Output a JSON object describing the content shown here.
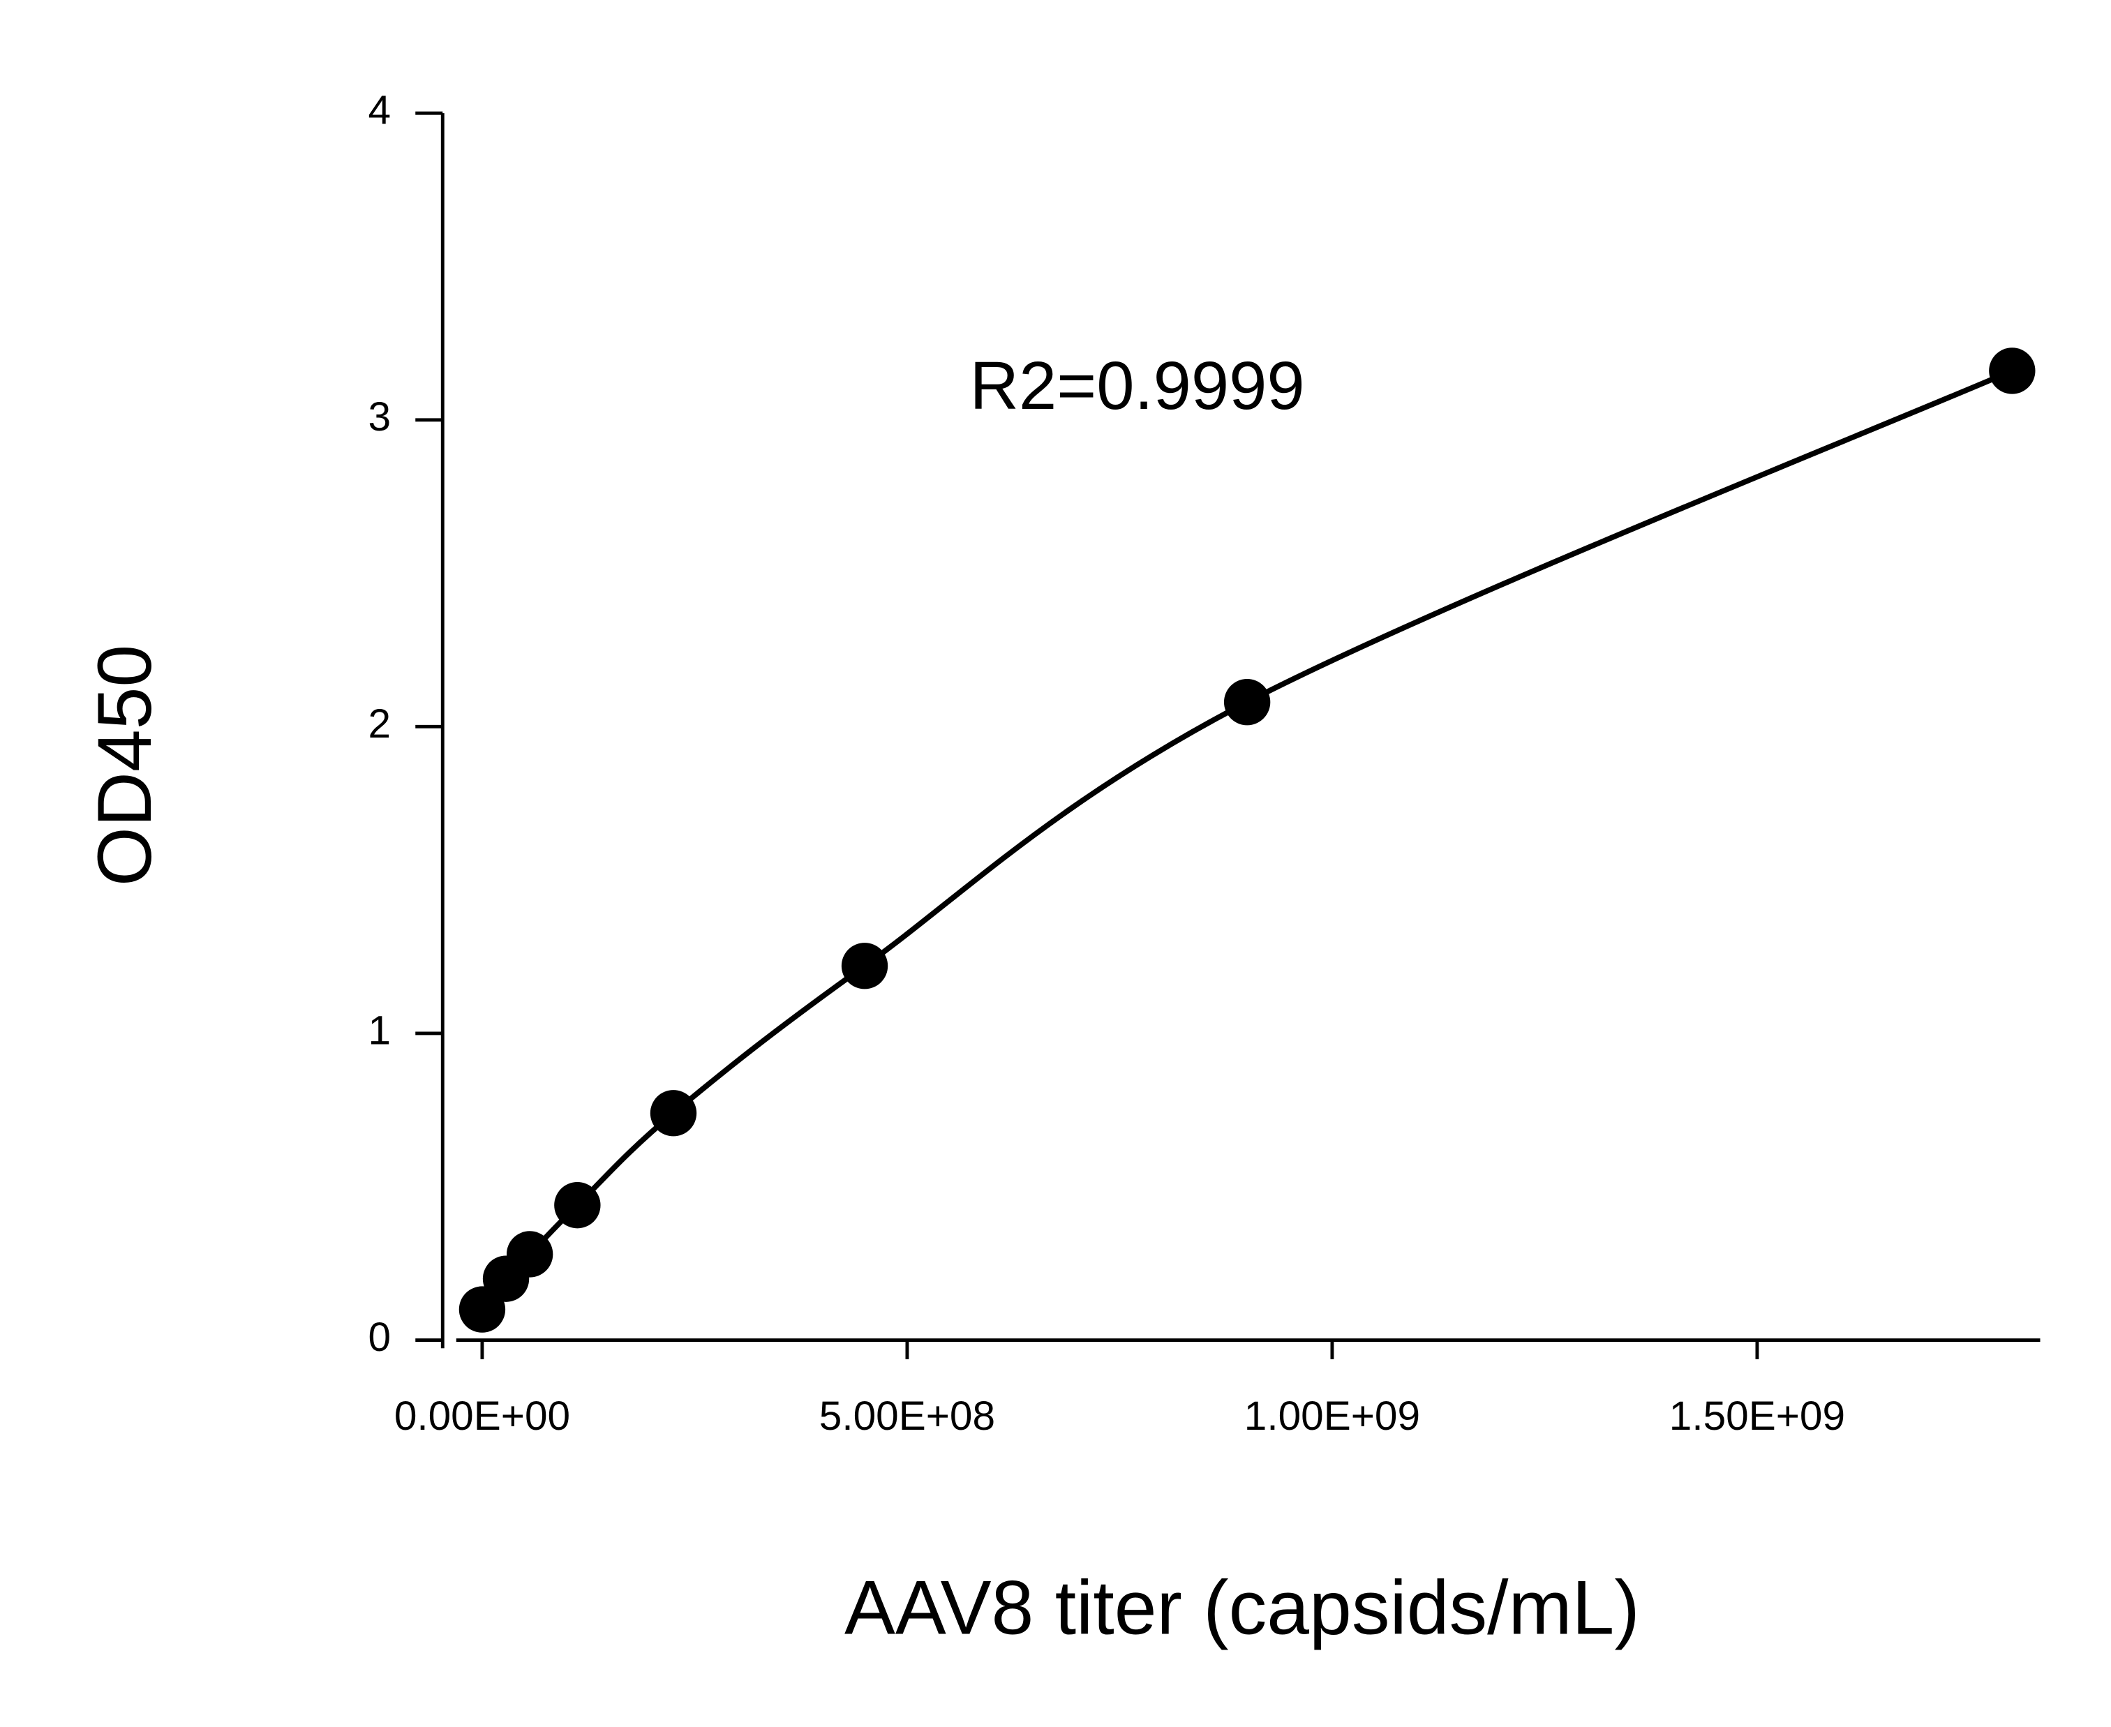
{
  "chart_data": {
    "type": "scatter",
    "x_label": "AAV8 titer (capsids/mL)",
    "y_label": "OD450",
    "annotation": "R2=0.9999",
    "series": [
      {
        "color": "#000000",
        "x": [
          0,
          28000000,
          56000000,
          112000000,
          225000000,
          450000000,
          900000000,
          1800000000
        ],
        "values": [
          0.1,
          0.2,
          0.28,
          0.44,
          0.74,
          1.22,
          2.08,
          3.16
        ]
      }
    ],
    "xlim": [
      -30500000,
      1833000000
    ],
    "ylim": [
      0,
      4
    ],
    "xticks": [
      {
        "value": 0,
        "label": "0.00E+00"
      },
      {
        "value": 500000000,
        "label": "5.00E+08"
      },
      {
        "value": 1000000000,
        "label": "1.00E+09"
      },
      {
        "value": 1500000000,
        "label": "1.50E+09"
      }
    ],
    "yticks": [
      0,
      1,
      2,
      3,
      4
    ],
    "fit_line": true
  }
}
